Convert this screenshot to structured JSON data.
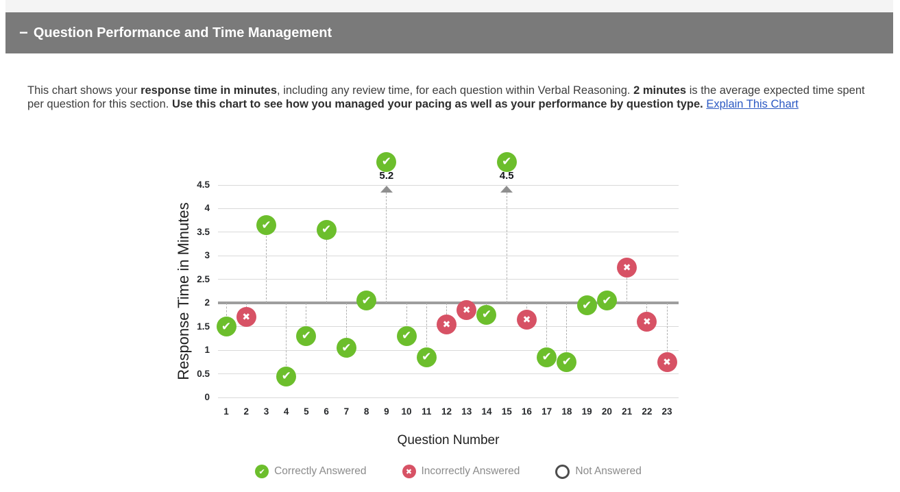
{
  "header": {
    "collapse_icon": "−",
    "title": "Question Performance and Time Management"
  },
  "description": {
    "part1": "This chart shows your ",
    "bold1": "response time in minutes",
    "part2": ", including any review time, for each question within Verbal Reasoning. ",
    "bold2": "2 minutes",
    "part3": " is the average expected time spent per question for this section. ",
    "bold3": "Use this chart to see how you managed your pacing as well as your performance by question type.",
    "part4": " ",
    "link": "Explain This Chart"
  },
  "chart_data": {
    "type": "scatter",
    "xlabel": "Question Number",
    "ylabel": "Response Time in Minutes",
    "ylim": [
      0,
      4.5
    ],
    "yticks": [
      "0",
      "0.5",
      "1",
      "1.5",
      "2",
      "2.5",
      "3",
      "3.5",
      "4",
      "4.5"
    ],
    "grid": true,
    "reference_line": {
      "value": 2,
      "meaning": "average expected minutes per question"
    },
    "legend_position": "bottom",
    "points": [
      {
        "q": 1,
        "value": 1.5,
        "status": "correct"
      },
      {
        "q": 2,
        "value": 1.7,
        "status": "incorrect"
      },
      {
        "q": 3,
        "value": 3.65,
        "status": "correct"
      },
      {
        "q": 4,
        "value": 0.45,
        "status": "correct"
      },
      {
        "q": 5,
        "value": 1.3,
        "status": "correct"
      },
      {
        "q": 6,
        "value": 3.55,
        "status": "correct"
      },
      {
        "q": 7,
        "value": 1.05,
        "status": "correct"
      },
      {
        "q": 8,
        "value": 2.05,
        "status": "correct"
      },
      {
        "q": 9,
        "value": 5.2,
        "status": "correct",
        "offscale": true,
        "label": "5.2"
      },
      {
        "q": 10,
        "value": 1.3,
        "status": "correct"
      },
      {
        "q": 11,
        "value": 0.85,
        "status": "correct"
      },
      {
        "q": 12,
        "value": 1.55,
        "status": "incorrect"
      },
      {
        "q": 13,
        "value": 1.85,
        "status": "incorrect"
      },
      {
        "q": 14,
        "value": 1.75,
        "status": "correct"
      },
      {
        "q": 15,
        "value": 4.5,
        "status": "correct",
        "offscale": true,
        "label": "4.5"
      },
      {
        "q": 16,
        "value": 1.65,
        "status": "incorrect"
      },
      {
        "q": 17,
        "value": 0.85,
        "status": "correct"
      },
      {
        "q": 18,
        "value": 0.75,
        "status": "correct"
      },
      {
        "q": 19,
        "value": 1.95,
        "status": "correct"
      },
      {
        "q": 20,
        "value": 2.05,
        "status": "correct"
      },
      {
        "q": 21,
        "value": 2.75,
        "status": "incorrect"
      },
      {
        "q": 22,
        "value": 1.6,
        "status": "incorrect"
      },
      {
        "q": 23,
        "value": 0.75,
        "status": "incorrect"
      }
    ],
    "legend": [
      {
        "status": "correct",
        "label": "Correctly Answered"
      },
      {
        "status": "incorrect",
        "label": "Incorrectly Answered"
      },
      {
        "status": "none",
        "label": "Not Answered"
      }
    ],
    "colors": {
      "correct": "#6cbe2c",
      "incorrect": "#d75265",
      "reference_line": "#9e9e9e",
      "gridline": "#d9d9d9",
      "header_bar": "#7a7a7a",
      "link": "#2b59c3"
    },
    "glyphs": {
      "correct": "✔",
      "incorrect": "✖"
    }
  }
}
